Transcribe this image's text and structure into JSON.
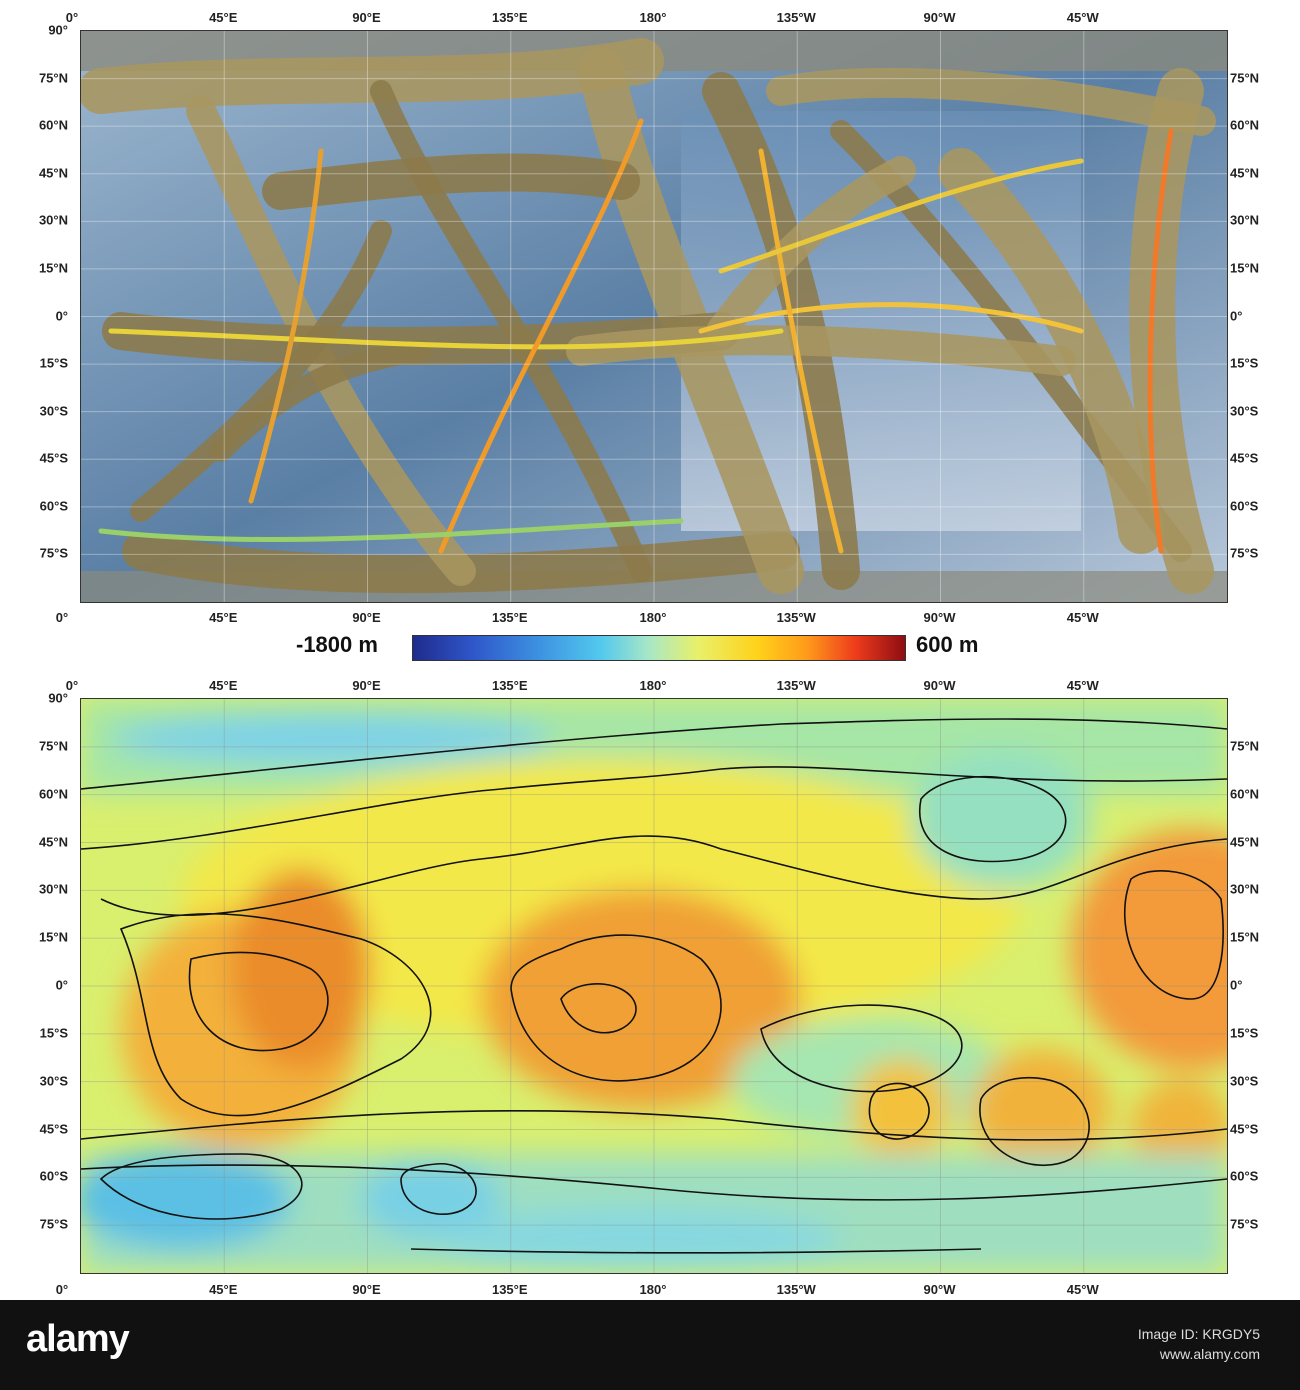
{
  "top_map": {
    "top_lon_labels": [
      "0°",
      "45°E",
      "90°E",
      "135°E",
      "180°",
      "135°W",
      "90°W",
      "45°W"
    ],
    "bottom_lon_labels": [
      "0°",
      "45°E",
      "90°E",
      "135°E",
      "180°",
      "135°W",
      "90°W",
      "45°W"
    ],
    "left_lat_labels": [
      "90°",
      "75°N",
      "60°N",
      "45°N",
      "30°N",
      "15°N",
      "0°",
      "15°S",
      "30°S",
      "45°S",
      "60°S",
      "75°S"
    ],
    "right_lat_labels": [
      "75°N",
      "60°N",
      "45°N",
      "30°N",
      "15°N",
      "0°",
      "15°S",
      "30°S",
      "45°S",
      "60°S",
      "75°S"
    ]
  },
  "colorbar": {
    "min_label": "-1800 m",
    "max_label": "600 m",
    "colors": [
      "#1f2b8c",
      "#3c8fe0",
      "#52c8ee",
      "#e9f06a",
      "#ffd21a",
      "#ff9b1a",
      "#ee3b1c",
      "#8e0d12"
    ]
  },
  "bottom_map": {
    "top_lon_labels": [
      "0°",
      "45°E",
      "90°E",
      "135°E",
      "180°",
      "135°W",
      "90°W",
      "45°W"
    ],
    "bottom_lon_labels": [
      "0°",
      "45°E",
      "90°E",
      "135°E",
      "180°",
      "135°W",
      "90°W",
      "45°W"
    ],
    "left_lat_labels": [
      "90°",
      "75°N",
      "60°N",
      "45°N",
      "30°N",
      "15°N",
      "0°",
      "15°S",
      "30°S",
      "45°S",
      "60°S",
      "75°S"
    ],
    "right_lat_labels": [
      "75°N",
      "60°N",
      "45°N",
      "30°N",
      "15°N",
      "0°",
      "15°S",
      "30°S",
      "45°S",
      "60°S",
      "75°S"
    ]
  },
  "footer": {
    "logo": "alamy",
    "image_id_label": "Image ID: KRGDY5",
    "site": "www.alamy.com"
  }
}
